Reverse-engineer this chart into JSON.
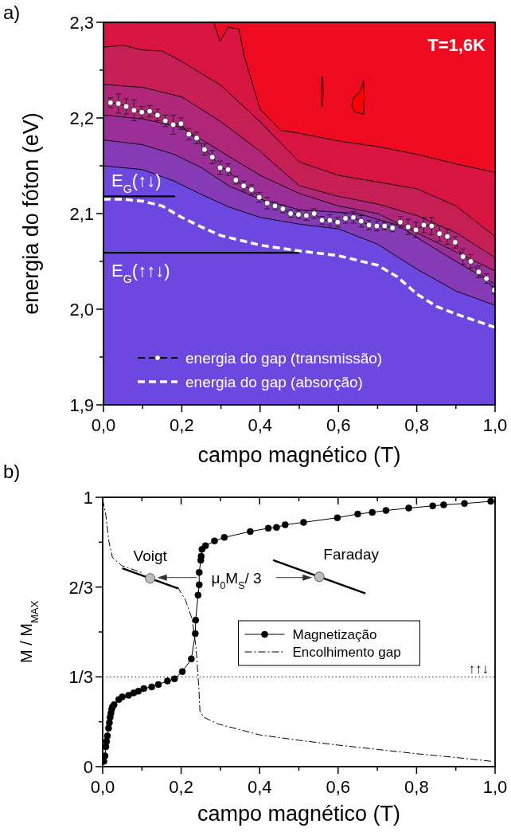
{
  "chart_data": [
    {
      "type": "line",
      "title": "a)",
      "xlabel": "campo magnético (T)",
      "ylabel": "energia do fóton (eV)",
      "xlim": [
        0,
        1
      ],
      "ylim": [
        1.9,
        2.3
      ],
      "xticks": [
        {
          "value": 0,
          "label": "0,0"
        },
        {
          "value": 0.1,
          "label": null
        },
        {
          "value": 0.2,
          "label": "0,2"
        },
        {
          "value": 0.3,
          "label": null
        },
        {
          "value": 0.4,
          "label": "0,4"
        },
        {
          "value": 0.5,
          "label": null
        },
        {
          "value": 0.6,
          "label": "0,6"
        },
        {
          "value": 0.7,
          "label": null
        },
        {
          "value": 0.8,
          "label": "0,8"
        },
        {
          "value": 0.9,
          "label": null
        },
        {
          "value": 1,
          "label": "1,0"
        }
      ],
      "yticks": [
        {
          "value": 1.9,
          "label": "1,9"
        },
        {
          "value": 1.95,
          "label": null
        },
        {
          "value": 2.0,
          "label": "2,0"
        },
        {
          "value": 2.05,
          "label": null
        },
        {
          "value": 2.1,
          "label": "2,1"
        },
        {
          "value": 2.15,
          "label": null
        },
        {
          "value": 2.2,
          "label": "2,2"
        },
        {
          "value": 2.25,
          "label": null
        },
        {
          "value": 2.3,
          "label": "2,3"
        }
      ],
      "legend": "bottom",
      "annotations": [
        "T=1,6K",
        {
          "text": "E$_{G}$(↑↓)",
          "x": 0,
          "y": 2.118
        },
        {
          "text": "E$_{G}$(↑↑↓)",
          "x": 0,
          "y": 2.059
        }
      ],
      "series": [
        {
          "type": "area",
          "color": "#da1440",
          "x": [
            0,
            0.281,
            0.298,
            0.318,
            0.346,
            0.359,
            0.4,
            0.453,
            0.5,
            0.6,
            0.7,
            0.8,
            0.9,
            1.0
          ],
          "values": [
            2.3,
            2.3,
            2.28,
            2.295,
            2.293,
            2.265,
            2.209,
            2.187,
            2.184,
            2.176,
            2.17,
            2.162,
            2.152,
            2.143
          ]
        },
        {
          "type": "area",
          "color": "#c51f55",
          "x": [
            0,
            0.05,
            0.1,
            0.15,
            0.2,
            0.3,
            0.4,
            0.5,
            0.6,
            0.7,
            0.8,
            0.9,
            1.0
          ],
          "values": [
            2.274,
            2.276,
            2.271,
            2.27,
            2.259,
            2.234,
            2.196,
            2.154,
            2.14,
            2.133,
            2.126,
            2.108,
            2.076
          ]
        },
        {
          "type": "area",
          "color": "#b0277a",
          "x": [
            0,
            0.1,
            0.2,
            0.3,
            0.4,
            0.5,
            0.6,
            0.7,
            0.8,
            0.9,
            1.0
          ],
          "values": [
            2.235,
            2.232,
            2.222,
            2.196,
            2.165,
            2.129,
            2.118,
            2.11,
            2.098,
            2.08,
            2.054
          ]
        },
        {
          "type": "area",
          "color": "#9a2f98",
          "x": [
            0,
            0.1,
            0.2,
            0.3,
            0.4,
            0.5,
            0.6,
            0.7,
            0.8,
            0.9,
            1.0
          ],
          "values": [
            2.203,
            2.199,
            2.19,
            2.165,
            2.14,
            2.121,
            2.108,
            2.1,
            2.08,
            2.06,
            2.04
          ]
        },
        {
          "type": "area",
          "color": "#853bb6",
          "x": [
            0,
            0.1,
            0.18,
            0.25,
            0.32,
            0.4,
            0.5,
            0.65,
            0.75,
            0.82,
            0.9,
            1.0
          ],
          "values": [
            2.177,
            2.172,
            2.162,
            2.148,
            2.129,
            2.115,
            2.104,
            2.1,
            2.088,
            2.07,
            2.05,
            2.026
          ]
        },
        {
          "type": "area",
          "color": "#6c48e0",
          "x": [
            0,
            0.1,
            0.18,
            0.25,
            0.32,
            0.4,
            0.5,
            0.6,
            0.7,
            0.8,
            0.9,
            1.0
          ],
          "values": [
            2.15,
            2.146,
            2.134,
            2.12,
            2.107,
            2.096,
            2.089,
            2.084,
            2.068,
            2.042,
            2.019,
            2.004
          ]
        },
        {
          "color": "#000000",
          "x": [
            0,
            0.183
          ],
          "values": [
            2.118,
            2.118
          ]
        },
        {
          "color": "#000000",
          "x": [
            0,
            0.501
          ],
          "values": [
            2.059,
            2.059
          ]
        },
        {
          "name": "energia do gap (transmissão)",
          "color": "#ffffff",
          "line_style": "dashed",
          "marker": "circle",
          "x": [
            0.018,
            0.038,
            0.058,
            0.078,
            0.098,
            0.118,
            0.138,
            0.158,
            0.178,
            0.198,
            0.218,
            0.238,
            0.258,
            0.278,
            0.298,
            0.318,
            0.338,
            0.358,
            0.378,
            0.398,
            0.418,
            0.438,
            0.458,
            0.478,
            0.498,
            0.518,
            0.538,
            0.558,
            0.578,
            0.598,
            0.618,
            0.638,
            0.658,
            0.678,
            0.698,
            0.718,
            0.738,
            0.758,
            0.778,
            0.798,
            0.818,
            0.838,
            0.858,
            0.878,
            0.898,
            0.918,
            0.938,
            0.958,
            0.978,
            0.998
          ],
          "values": [
            2.216,
            2.215,
            2.212,
            2.208,
            2.206,
            2.207,
            2.203,
            2.197,
            2.193,
            2.194,
            2.183,
            2.179,
            2.167,
            2.159,
            2.148,
            2.146,
            2.135,
            2.129,
            2.125,
            2.117,
            2.111,
            2.108,
            2.105,
            2.1,
            2.099,
            2.098,
            2.1,
            2.093,
            2.093,
            2.091,
            2.095,
            2.096,
            2.092,
            2.088,
            2.087,
            2.087,
            2.085,
            2.091,
            2.086,
            2.083,
            2.088,
            2.087,
            2.079,
            2.076,
            2.07,
            2.055,
            2.05,
            2.039,
            2.032,
            2.02
          ],
          "errors": [
            0.005,
            0.01,
            0.008,
            0.011,
            0.006,
            0.006,
            0.006,
            0.006,
            0.01,
            0.006,
            0.006,
            0.006,
            0.006,
            0.007,
            0.007,
            0.006,
            0.004,
            0.005,
            0.005,
            0.005,
            0.006,
            0.004,
            0.004,
            0.004,
            0.004,
            0.005,
            0.005,
            0.004,
            0.006,
            0.005,
            0.005,
            0.006,
            0.006,
            0.005,
            0.005,
            0.004,
            0.004,
            0.006,
            0.008,
            0.008,
            0.008,
            0.009,
            0.008,
            0.008,
            0.006,
            0.008,
            0.007,
            0.006,
            0.005,
            0.004
          ]
        },
        {
          "name": "energia do gap (absorção)",
          "color": "#ffffff",
          "line_style": "dashed",
          "x": [
            0,
            0.05,
            0.1,
            0.15,
            0.2,
            0.25,
            0.3,
            0.4,
            0.5,
            0.6,
            0.7,
            0.75,
            0.8,
            0.85,
            0.9,
            1.0
          ],
          "values": [
            2.115,
            2.115,
            2.113,
            2.108,
            2.096,
            2.086,
            2.077,
            2.067,
            2.061,
            2.056,
            2.046,
            2.034,
            2.016,
            2.003,
            1.995,
            1.981
          ]
        }
      ]
    },
    {
      "type": "line",
      "title": "b)",
      "xlabel": "campo magnético (T)",
      "ylabel": "M / M$_{MAX}$",
      "xlim": [
        0,
        1
      ],
      "ylim": [
        0,
        1
      ],
      "xticks": [
        {
          "value": 0,
          "label": "0,0"
        },
        {
          "value": 0.1,
          "label": null
        },
        {
          "value": 0.2,
          "label": "0,2"
        },
        {
          "value": 0.3,
          "label": null
        },
        {
          "value": 0.4,
          "label": "0,4"
        },
        {
          "value": 0.5,
          "label": null
        },
        {
          "value": 0.6,
          "label": "0,6"
        },
        {
          "value": 0.7,
          "label": null
        },
        {
          "value": 0.8,
          "label": "0,8"
        },
        {
          "value": 0.9,
          "label": null
        },
        {
          "value": 1,
          "label": "1,0"
        }
      ],
      "yticks": [
        0,
        {
          "value": 0.1667,
          "label": null
        },
        {
          "value": 0.3333,
          "label": "1/3"
        },
        {
          "value": 0.5,
          "label": null
        },
        {
          "value": 0.6667,
          "label": "2/3"
        },
        {
          "value": 0.8333,
          "label": null
        },
        1
      ],
      "legend": "center",
      "annotations": [
        {
          "text": "Voigt",
          "x": 0.121,
          "y": 0.699
        },
        {
          "text": "Faraday",
          "x": 0.552,
          "y": 0.705
        },
        "μ$_{0}$M$_{S}$/ 3"
      ],
      "ref_lines": [
        {
          "axis": "y",
          "value": 0.3333,
          "label": "↑↑↓",
          "line_style": "dotted",
          "color": "#000000"
        }
      ],
      "series": [
        {
          "name": "Magnetização",
          "color": "#000000",
          "marker": "circle",
          "x": [
            0.003,
            0.006,
            0.008,
            0.01,
            0.012,
            0.015,
            0.017,
            0.019,
            0.021,
            0.023,
            0.025,
            0.029,
            0.041,
            0.05,
            0.066,
            0.079,
            0.091,
            0.105,
            0.125,
            0.142,
            0.165,
            0.183,
            0.203,
            0.226,
            0.236,
            0.237,
            0.243,
            0.246,
            0.246,
            0.25,
            0.251,
            0.253,
            0.262,
            0.285,
            0.31,
            0.376,
            0.422,
            0.443,
            0.465,
            0.512,
            0.598,
            0.65,
            0.687,
            0.722,
            0.78,
            0.841,
            0.869,
            0.922,
            0.989
          ],
          "values": [
            0.02,
            0.04,
            0.074,
            0.094,
            0.114,
            0.143,
            0.163,
            0.183,
            0.198,
            0.213,
            0.222,
            0.23,
            0.249,
            0.259,
            0.265,
            0.274,
            0.28,
            0.29,
            0.296,
            0.305,
            0.318,
            0.326,
            0.353,
            0.4,
            0.494,
            0.544,
            0.637,
            0.675,
            0.721,
            0.766,
            0.781,
            0.807,
            0.82,
            0.838,
            0.851,
            0.873,
            0.885,
            0.888,
            0.898,
            0.907,
            0.924,
            0.938,
            0.944,
            0.951,
            0.96,
            0.968,
            0.972,
            0.977,
            0.985
          ]
        },
        {
          "name": "Encolhimento gap",
          "color": "#000000",
          "line_style": "dashdot",
          "x": [
            0,
            0.008,
            0.016,
            0.025,
            0.049,
            0.1,
            0.15,
            0.191,
            0.211,
            0.228,
            0.238,
            0.245,
            0.248,
            0.258,
            0.293,
            0.4,
            0.5,
            0.6,
            0.7,
            0.8,
            0.9,
            0.99
          ],
          "values": [
            0.993,
            0.934,
            0.835,
            0.776,
            0.746,
            0.72,
            null,
            0.667,
            0.618,
            0.548,
            0.441,
            0.292,
            0.204,
            0.183,
            0.159,
            0.118,
            0.098,
            0.08,
            0.064,
            0.048,
            0.034,
            0.02
          ]
        }
      ]
    }
  ]
}
